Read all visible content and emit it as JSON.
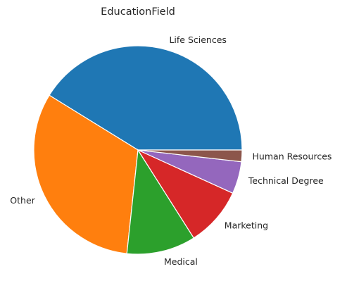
{
  "chart_data": {
    "type": "pie",
    "title": "EducationField",
    "categories": [
      "Life Sciences",
      "Other",
      "Medical",
      "Marketing",
      "Technical Degree",
      "Human Resources"
    ],
    "values": [
      41.2,
      32.1,
      10.7,
      9.2,
      5.0,
      1.8
    ],
    "colors": [
      "#1f77b4",
      "#ff7f0e",
      "#2ca02c",
      "#d62728",
      "#9467bd",
      "#8c564b"
    ],
    "start_angle_deg": 0,
    "direction": "counterclockwise",
    "legend": "none"
  }
}
